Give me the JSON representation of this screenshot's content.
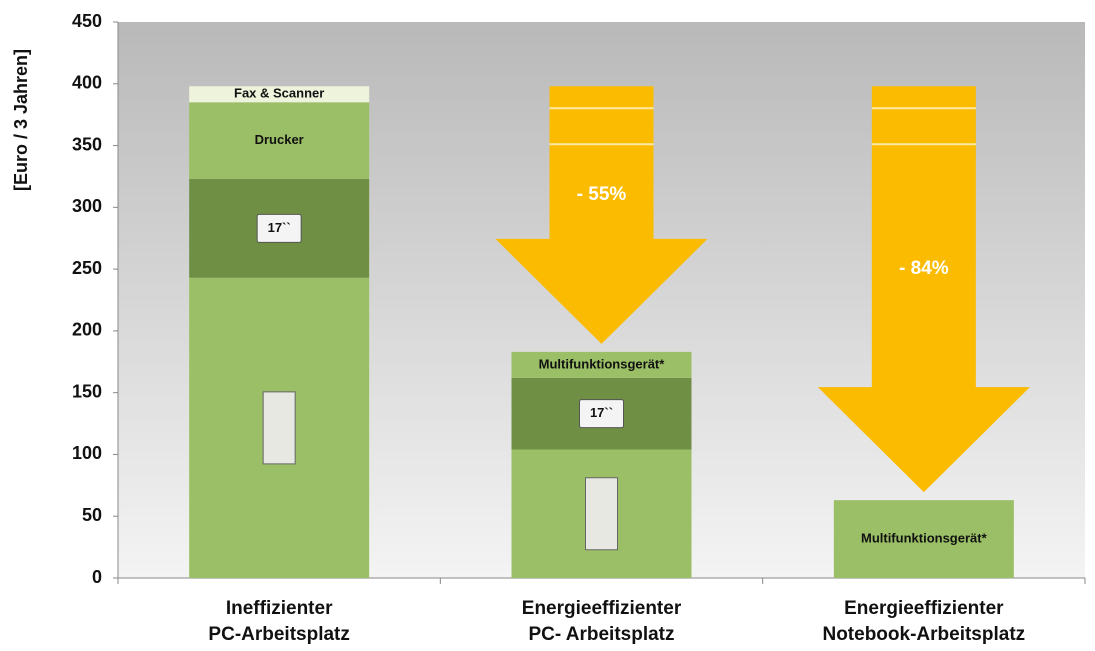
{
  "chart_data": {
    "type": "stacked-bar",
    "y_label": "[Euro / 3 Jahren]",
    "ylim": [
      0,
      450
    ],
    "yticks": [
      0,
      50,
      100,
      150,
      200,
      250,
      300,
      350,
      400,
      450
    ],
    "categories": [
      "Ineffizienter\nPC-Arbeitsplatz",
      "Energieeffizienter\nPC- Arbeitsplatz",
      "Energieeffizienter\nNotebook-Arbeitsplatz"
    ],
    "stacks": [
      [
        {
          "value": 243,
          "color": "#9bbf66"
        },
        {
          "value": 80,
          "label": "17``",
          "color": "#6f8f45"
        },
        {
          "value": 62,
          "label": "Drucker",
          "color": "#9bbf66"
        },
        {
          "value": 13,
          "label": "Fax & Scanner",
          "color": "#eef3dc"
        }
      ],
      [
        {
          "value": 104,
          "color": "#9bbf66"
        },
        {
          "value": 58,
          "label": "17``",
          "color": "#6f8f45"
        },
        {
          "value": 21,
          "label": "Multifunktionsgerät*",
          "color": "#9bbf66"
        }
      ],
      [
        {
          "value": 63,
          "label": "Multifunktionsgerät*",
          "color": "#9bbf66"
        }
      ]
    ],
    "annotations": [
      {
        "text": "- 55%",
        "category": 1
      },
      {
        "text": "- 84%",
        "category": 2
      }
    ],
    "arrow_color": "#fbbb00"
  }
}
